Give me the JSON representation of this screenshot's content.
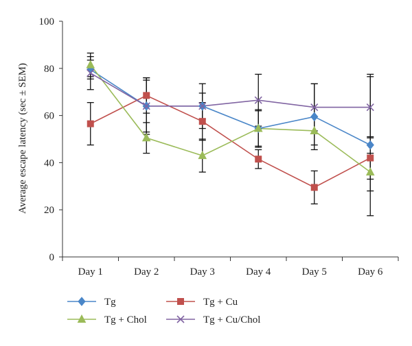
{
  "chart_data": {
    "type": "line",
    "title": "",
    "xlabel": "",
    "ylabel": "Average escape latency (sec ± SEM)",
    "categories": [
      "Day 1",
      "Day 2",
      "Day 3",
      "Day 4",
      "Day 5",
      "Day 6"
    ],
    "ylim": [
      0,
      100
    ],
    "yticks": [
      0,
      20,
      40,
      60,
      80,
      100
    ],
    "grid": false,
    "legend_position": "bottom",
    "series": [
      {
        "name": "Tg",
        "color": "#4a86c8",
        "marker": "diamond",
        "values": [
          79.5,
          64,
          64,
          54.5,
          59.5,
          47.5
        ],
        "errors": [
          4,
          11,
          9.5,
          8,
          14,
          30
        ]
      },
      {
        "name": "Tg + Cu",
        "color": "#c0504d",
        "marker": "square",
        "values": [
          56.5,
          68.5,
          57.5,
          41.5,
          29.5,
          42
        ],
        "errors": [
          9,
          7.5,
          8,
          4,
          7,
          9
        ]
      },
      {
        "name": "Tg + Chol",
        "color": "#9bbb59",
        "marker": "triangle",
        "values": [
          81.5,
          50.5,
          43,
          54.5,
          53.5,
          36
        ],
        "errors": [
          5,
          6.5,
          7,
          7.5,
          6,
          8
        ]
      },
      {
        "name": "Tg + Cu/Chol",
        "color": "#8064a2",
        "marker": "x",
        "values": [
          78,
          64,
          64,
          66.5,
          63.5,
          63.5
        ],
        "errors": [
          7,
          12,
          5.5,
          11,
          10,
          13
        ]
      }
    ]
  }
}
